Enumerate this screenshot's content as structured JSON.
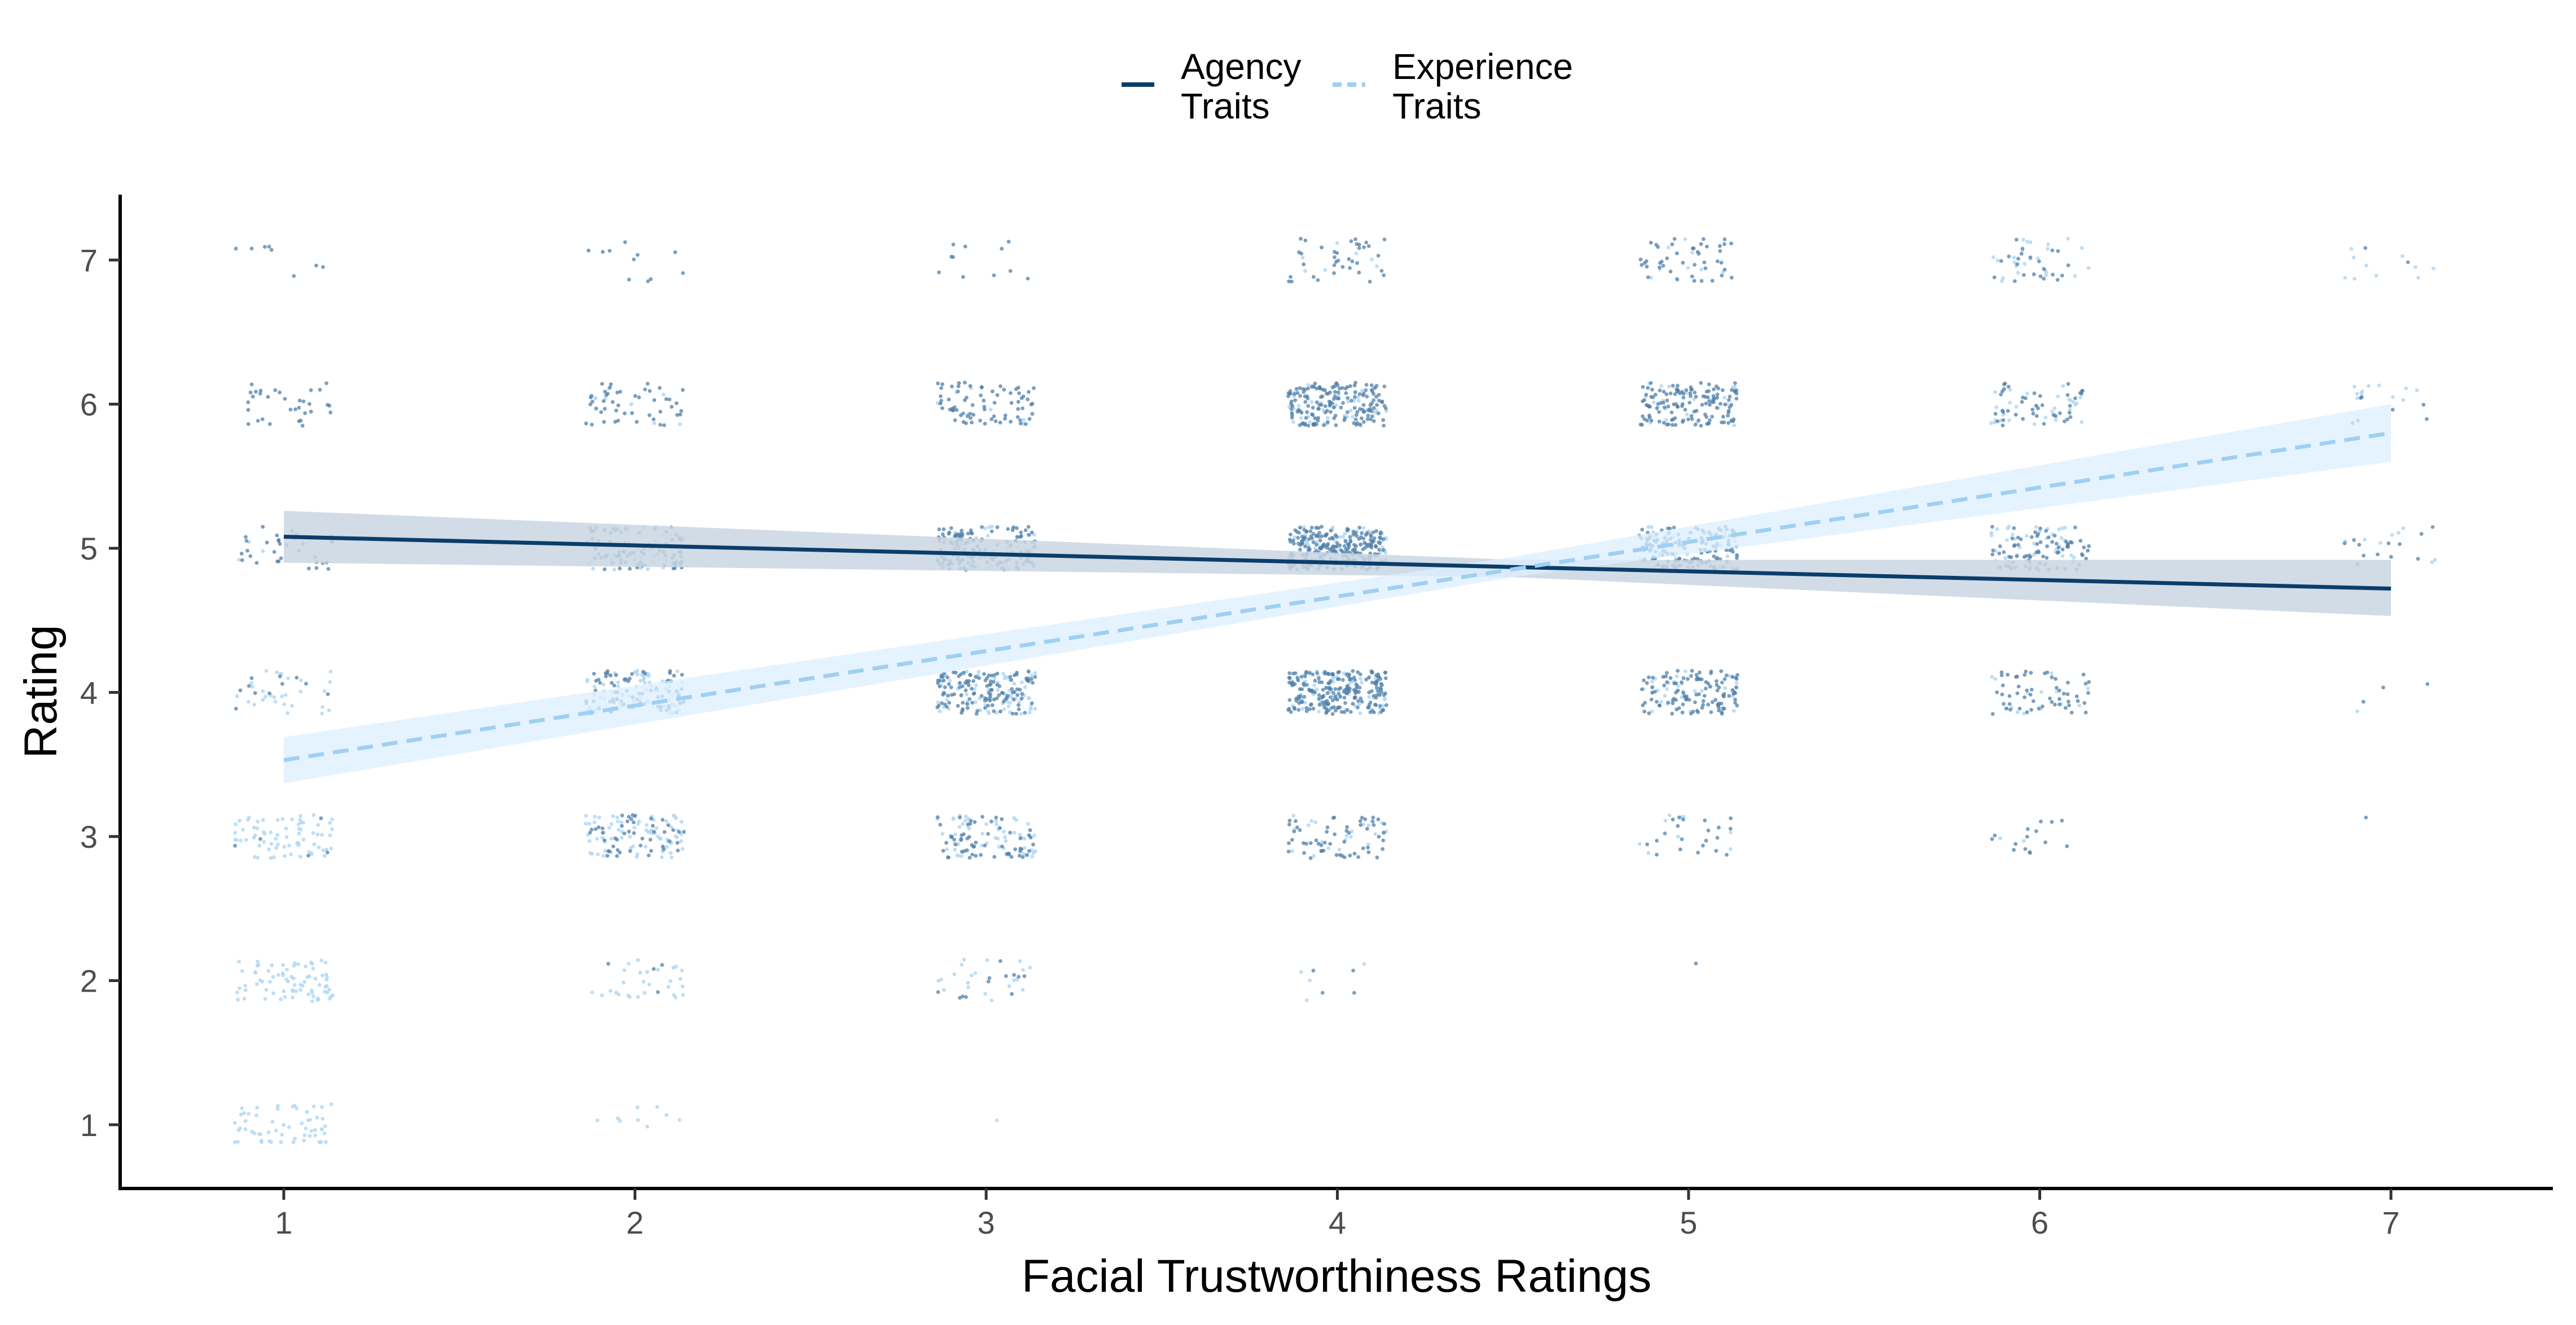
{
  "colors": {
    "agency": "#0b3d6b",
    "agency_band": "#c9d6e2",
    "experience": "#9fd0f2",
    "experience_band": "#dcefff",
    "agency_points": "#4f7fa8",
    "experience_points": "#b3d8f3",
    "axis": "#000000",
    "tick_text": "#4d4d4d"
  },
  "legend": {
    "position": "top",
    "items": [
      {
        "key": "agency",
        "label_line1": "Agency",
        "label_line2": "Traits",
        "line_style": "solid"
      },
      {
        "key": "experience",
        "label_line1": "Experience",
        "label_line2": "Traits",
        "line_style": "dashed"
      }
    ]
  },
  "chart_data": {
    "type": "scatter",
    "title": "",
    "xlabel": "Facial Trustworthiness Ratings",
    "ylabel": "Rating",
    "x_ticks": [
      1,
      2,
      3,
      4,
      5,
      6,
      7
    ],
    "y_ticks": [
      1,
      2,
      3,
      4,
      5,
      6,
      7
    ],
    "xlim": [
      0.54,
      7.33
    ],
    "ylim": [
      0.55,
      7.45
    ],
    "grid": false,
    "points_note": "jittered raw ratings at each integer trustworthiness level, both trait types",
    "point_density": [
      {
        "x": 1,
        "agency": 90,
        "experience": 240
      },
      {
        "x": 2,
        "agency": 260,
        "experience": 230
      },
      {
        "x": 3,
        "agency": 420,
        "experience": 200
      },
      {
        "x": 4,
        "agency": 720,
        "experience": 200
      },
      {
        "x": 5,
        "agency": 460,
        "experience": 120
      },
      {
        "x": 6,
        "agency": 210,
        "experience": 110
      },
      {
        "x": 7,
        "agency": 25,
        "experience": 30
      }
    ],
    "series": [
      {
        "name": "Agency Traits",
        "style": "solid",
        "fit": {
          "x": [
            1,
            7
          ],
          "y": [
            5.08,
            4.72
          ]
        },
        "band": {
          "x": [
            1,
            4.5,
            7
          ],
          "lower": [
            4.9,
            4.8,
            4.53
          ],
          "upper": [
            5.26,
            4.92,
            4.92
          ]
        }
      },
      {
        "name": "Experience Traits",
        "style": "dashed",
        "fit": {
          "x": [
            1,
            7
          ],
          "y": [
            3.53,
            5.8
          ]
        },
        "band": {
          "x": [
            1,
            4.5,
            7
          ],
          "lower": [
            3.37,
            4.8,
            5.6
          ],
          "upper": [
            3.69,
            4.94,
            6.0
          ]
        }
      }
    ]
  }
}
